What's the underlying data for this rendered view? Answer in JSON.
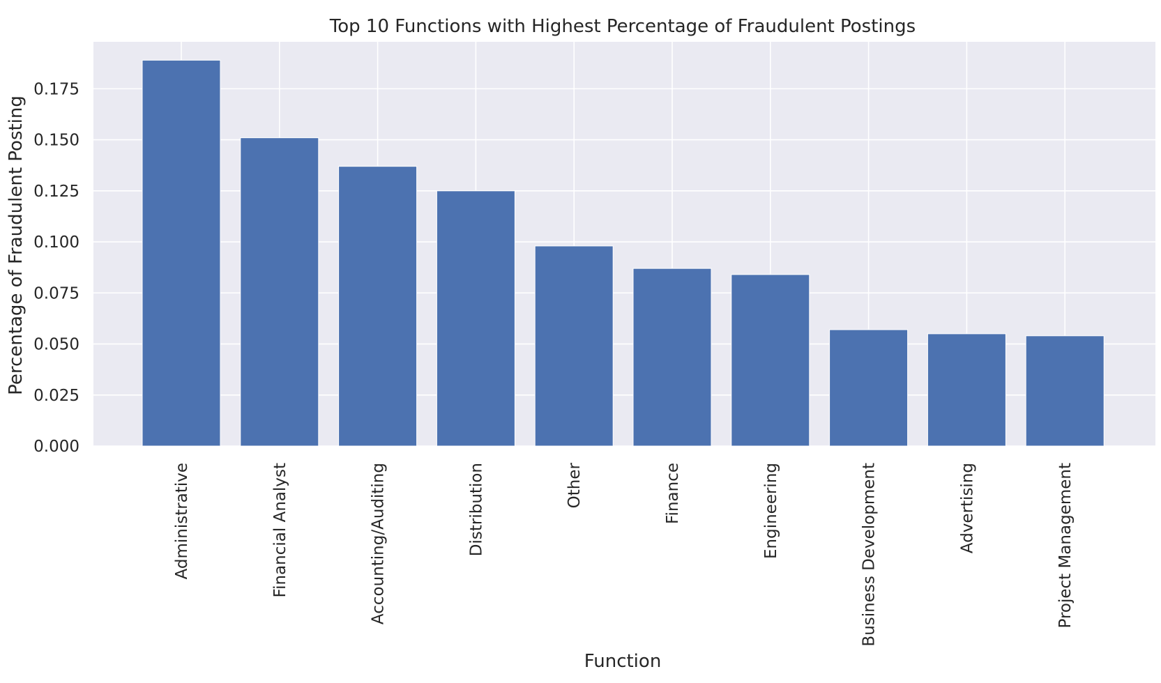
{
  "chart_data": {
    "type": "bar",
    "title": "Top 10 Functions with Highest Percentage of Fraudulent Postings",
    "xlabel": "Function",
    "ylabel": "Percentage of Fraudulent Posting",
    "categories": [
      "Administrative",
      "Financial Analyst",
      "Accounting/Auditing",
      "Distribution",
      "Other",
      "Finance",
      "Engineering",
      "Business Development",
      "Advertising",
      "Project Management"
    ],
    "values": [
      0.189,
      0.151,
      0.137,
      0.125,
      0.098,
      0.087,
      0.084,
      0.057,
      0.055,
      0.054
    ],
    "ylim": [
      0,
      0.198
    ],
    "yticks": [
      0.0,
      0.025,
      0.05,
      0.075,
      0.1,
      0.125,
      0.15,
      0.175
    ],
    "ytick_labels": [
      "0.000",
      "0.025",
      "0.050",
      "0.075",
      "0.100",
      "0.125",
      "0.150",
      "0.175"
    ],
    "grid": true,
    "colors": {
      "bar": "#4c72b0",
      "plot_background": "#eaeaf2",
      "grid": "#ffffff",
      "text": "#262626"
    }
  }
}
